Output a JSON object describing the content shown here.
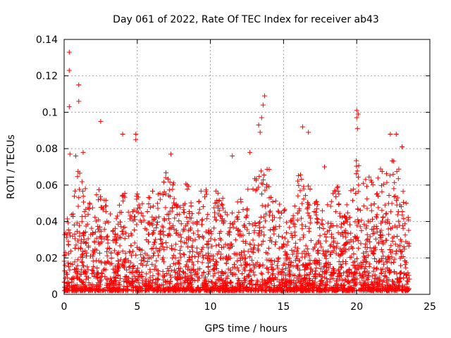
{
  "chart_data": {
    "type": "scatter",
    "title": "Day 061 of 2022, Rate Of TEC Index for receiver ab43",
    "xlabel": "GPS time / hours",
    "ylabel": "ROTI / TECUs",
    "xlim": [
      0,
      25
    ],
    "ylim": [
      0,
      0.14
    ],
    "x_ticks": [
      0,
      5,
      10,
      15,
      20,
      25
    ],
    "x_tick_labels": [
      "0",
      "5",
      "10",
      "15",
      "20",
      "25"
    ],
    "y_ticks": [
      0,
      0.02,
      0.04,
      0.06,
      0.08,
      0.1,
      0.12,
      0.14
    ],
    "y_tick_labels": [
      "0",
      "0.02",
      "0.04",
      "0.06",
      "0.08",
      "0.1",
      "0.12",
      "0.14"
    ],
    "grid": true,
    "marker": "plus",
    "color": "#ff0000",
    "x_range_of_data": [
      0,
      23.6
    ],
    "highlighted_points": [
      {
        "x": 0.35,
        "y": 0.133
      },
      {
        "x": 0.35,
        "y": 0.123
      },
      {
        "x": 1.0,
        "y": 0.115
      },
      {
        "x": 1.0,
        "y": 0.106
      },
      {
        "x": 0.35,
        "y": 0.103
      },
      {
        "x": 2.5,
        "y": 0.095
      },
      {
        "x": 4.0,
        "y": 0.088
      },
      {
        "x": 4.9,
        "y": 0.088
      },
      {
        "x": 4.9,
        "y": 0.085
      },
      {
        "x": 13.7,
        "y": 0.109
      },
      {
        "x": 13.6,
        "y": 0.104
      },
      {
        "x": 13.5,
        "y": 0.097
      },
      {
        "x": 13.3,
        "y": 0.093
      },
      {
        "x": 13.4,
        "y": 0.089
      },
      {
        "x": 16.3,
        "y": 0.092
      },
      {
        "x": 16.7,
        "y": 0.089
      },
      {
        "x": 20.0,
        "y": 0.101
      },
      {
        "x": 20.1,
        "y": 0.099
      },
      {
        "x": 20.0,
        "y": 0.097
      },
      {
        "x": 20.05,
        "y": 0.091
      },
      {
        "x": 22.3,
        "y": 0.088
      },
      {
        "x": 22.7,
        "y": 0.088
      },
      {
        "x": 23.1,
        "y": 0.081
      },
      {
        "x": 12.7,
        "y": 0.078
      },
      {
        "x": 7.3,
        "y": 0.077
      },
      {
        "x": 11.5,
        "y": 0.076
      },
      {
        "x": 1.3,
        "y": 0.078
      },
      {
        "x": 0.4,
        "y": 0.077
      },
      {
        "x": 0.8,
        "y": 0.076
      },
      {
        "x": 17.8,
        "y": 0.07
      }
    ],
    "envelope": {
      "x": [
        0,
        0.3,
        0.6,
        1.0,
        1.5,
        2.0,
        2.5,
        3.0,
        3.5,
        4.0,
        4.5,
        5.0,
        5.5,
        6.0,
        6.5,
        7.0,
        7.5,
        8.0,
        8.5,
        9.0,
        9.5,
        10.0,
        10.5,
        11.0,
        11.5,
        12.0,
        12.5,
        13.0,
        13.5,
        14.0,
        14.5,
        15.0,
        15.5,
        16.0,
        16.5,
        17.0,
        17.5,
        18.0,
        18.5,
        19.0,
        19.5,
        20.0,
        20.5,
        21.0,
        21.5,
        22.0,
        22.5,
        23.0,
        23.6
      ],
      "upper": [
        0.03,
        0.06,
        0.05,
        0.07,
        0.06,
        0.05,
        0.065,
        0.05,
        0.04,
        0.06,
        0.045,
        0.06,
        0.05,
        0.06,
        0.055,
        0.07,
        0.065,
        0.05,
        0.07,
        0.05,
        0.06,
        0.055,
        0.06,
        0.05,
        0.045,
        0.055,
        0.06,
        0.065,
        0.075,
        0.07,
        0.05,
        0.055,
        0.045,
        0.065,
        0.07,
        0.06,
        0.045,
        0.055,
        0.06,
        0.06,
        0.055,
        0.075,
        0.065,
        0.065,
        0.07,
        0.07,
        0.075,
        0.07,
        0.04
      ],
      "lower": [
        0.002,
        0.002,
        0.002,
        0.002,
        0.002,
        0.002,
        0.002,
        0.002,
        0.002,
        0.002,
        0.002,
        0.002,
        0.002,
        0.002,
        0.002,
        0.002,
        0.002,
        0.002,
        0.002,
        0.002,
        0.002,
        0.002,
        0.002,
        0.002,
        0.002,
        0.002,
        0.002,
        0.002,
        0.002,
        0.002,
        0.002,
        0.002,
        0.002,
        0.002,
        0.002,
        0.002,
        0.002,
        0.002,
        0.002,
        0.002,
        0.002,
        0.002,
        0.002,
        0.002,
        0.002,
        0.002,
        0.002,
        0.002,
        0.002
      ]
    },
    "point_count": 3000,
    "random_seed": 61
  }
}
